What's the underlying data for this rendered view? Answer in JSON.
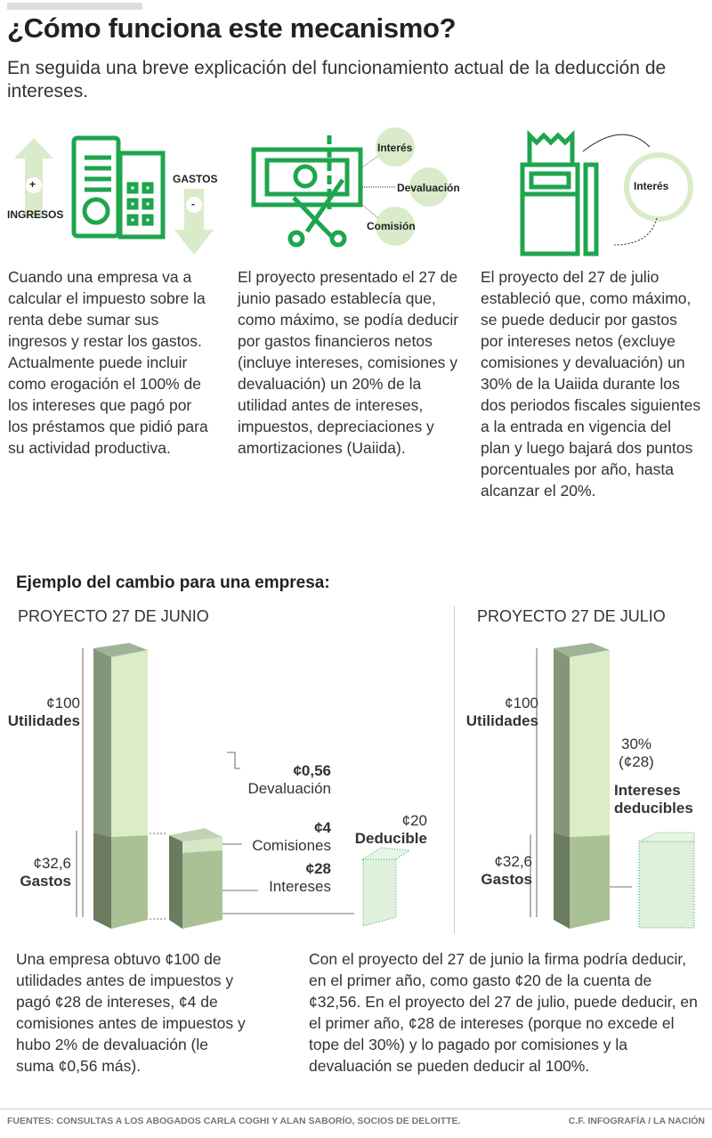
{
  "title": "¿Cómo funciona este mecanismo?",
  "subtitle": "En seguida una breve explicación del funcionamiento actual de la deducción de intereses.",
  "icons": {
    "ingresos_label": "INGRESOS",
    "gastos_label": "GASTOS",
    "plus": "+",
    "minus": "-",
    "interes": "Interés",
    "devaluacion": "Devaluación",
    "comision": "Comisión",
    "interes2": "Interés"
  },
  "columns": [
    "Cuando una empresa va a calcular el impuesto sobre la renta debe sumar sus ingresos y restar los gastos. Actualmente puede incluir como erogación el 100% de los intereses que pagó por los préstamos que pidió para su actividad productiva.",
    "El proyecto presentado el 27 de junio pasado establecía que, como máximo, se podía deducir por gastos financieros netos (incluye intereses, comisiones y devaluación) un 20% de la utilidad antes de intereses, impuestos, depreciaciones y amortizaciones (Uaiida).",
    "El proyecto del 27 de julio estableció que, como máximo, se puede deducir por gastos por intereses netos (excluye comisiones y devaluación) un 30% de la Uaiida durante los dos periodos fiscales siguientes a la entrada en vigencia del plan y luego bajará dos puntos porcentuales por año, hasta alcanzar el 20%."
  ],
  "example": {
    "heading": "Ejemplo del cambio para una empresa:",
    "left": {
      "title": "PROYECTO 27 DE JUNIO",
      "utilidades_value": "¢100",
      "utilidades_label": "Utilidades",
      "gastos_value": "¢32,6",
      "gastos_label": "Gastos",
      "devaluacion_value": "¢0,56",
      "devaluacion_label": "Devaluación",
      "comisiones_value": "¢4",
      "comisiones_label": "Comisiones",
      "intereses_value": "¢28",
      "intereses_label": "Intereses",
      "deducible_value": "¢20",
      "deducible_label": "Deducible"
    },
    "right": {
      "title": "PROYECTO 27 DE JULIO",
      "utilidades_value": "¢100",
      "utilidades_label": "Utilidades",
      "gastos_value": "¢32,6",
      "gastos_label": "Gastos",
      "pct": "30%",
      "pct_value": "(¢28)",
      "deducibles_label_1": "Intereses",
      "deducibles_label_2": "deducibles"
    },
    "para_left": "Una empresa obtuvo ¢100 de utilidades antes de impuestos y pagó ¢28 de intereses, ¢4 de comisiones antes de impuestos y hubo 2% de devaluación (le suma ¢0,56 más).",
    "para_right": "Con el proyecto del 27 de junio la firma podría deducir, en el primer año, como gasto ¢20 de la cuenta de ¢32,56. En el proyecto del 27 de julio, puede deducir, en el primer año, ¢28 de intereses (porque no excede el tope del 30%) y lo pagado por comisiones y la devaluación se pueden deducir al 100%."
  },
  "footer": {
    "sources": "FUENTES: CONSULTAS A LOS ABOGADOS CARLA COGHI Y ALAN SABORÍO, SOCIOS DE DELOITTE.",
    "credit": "C.F. INFOGRAFÍA / LA NACIÓN"
  },
  "colors": {
    "icon_green": "#1ea54e",
    "light_green": "#d9ebc9",
    "bar_side": "#7f8f78",
    "bar_front_top": "#dcecc6",
    "bar_front_bottom": "#a9c195"
  }
}
